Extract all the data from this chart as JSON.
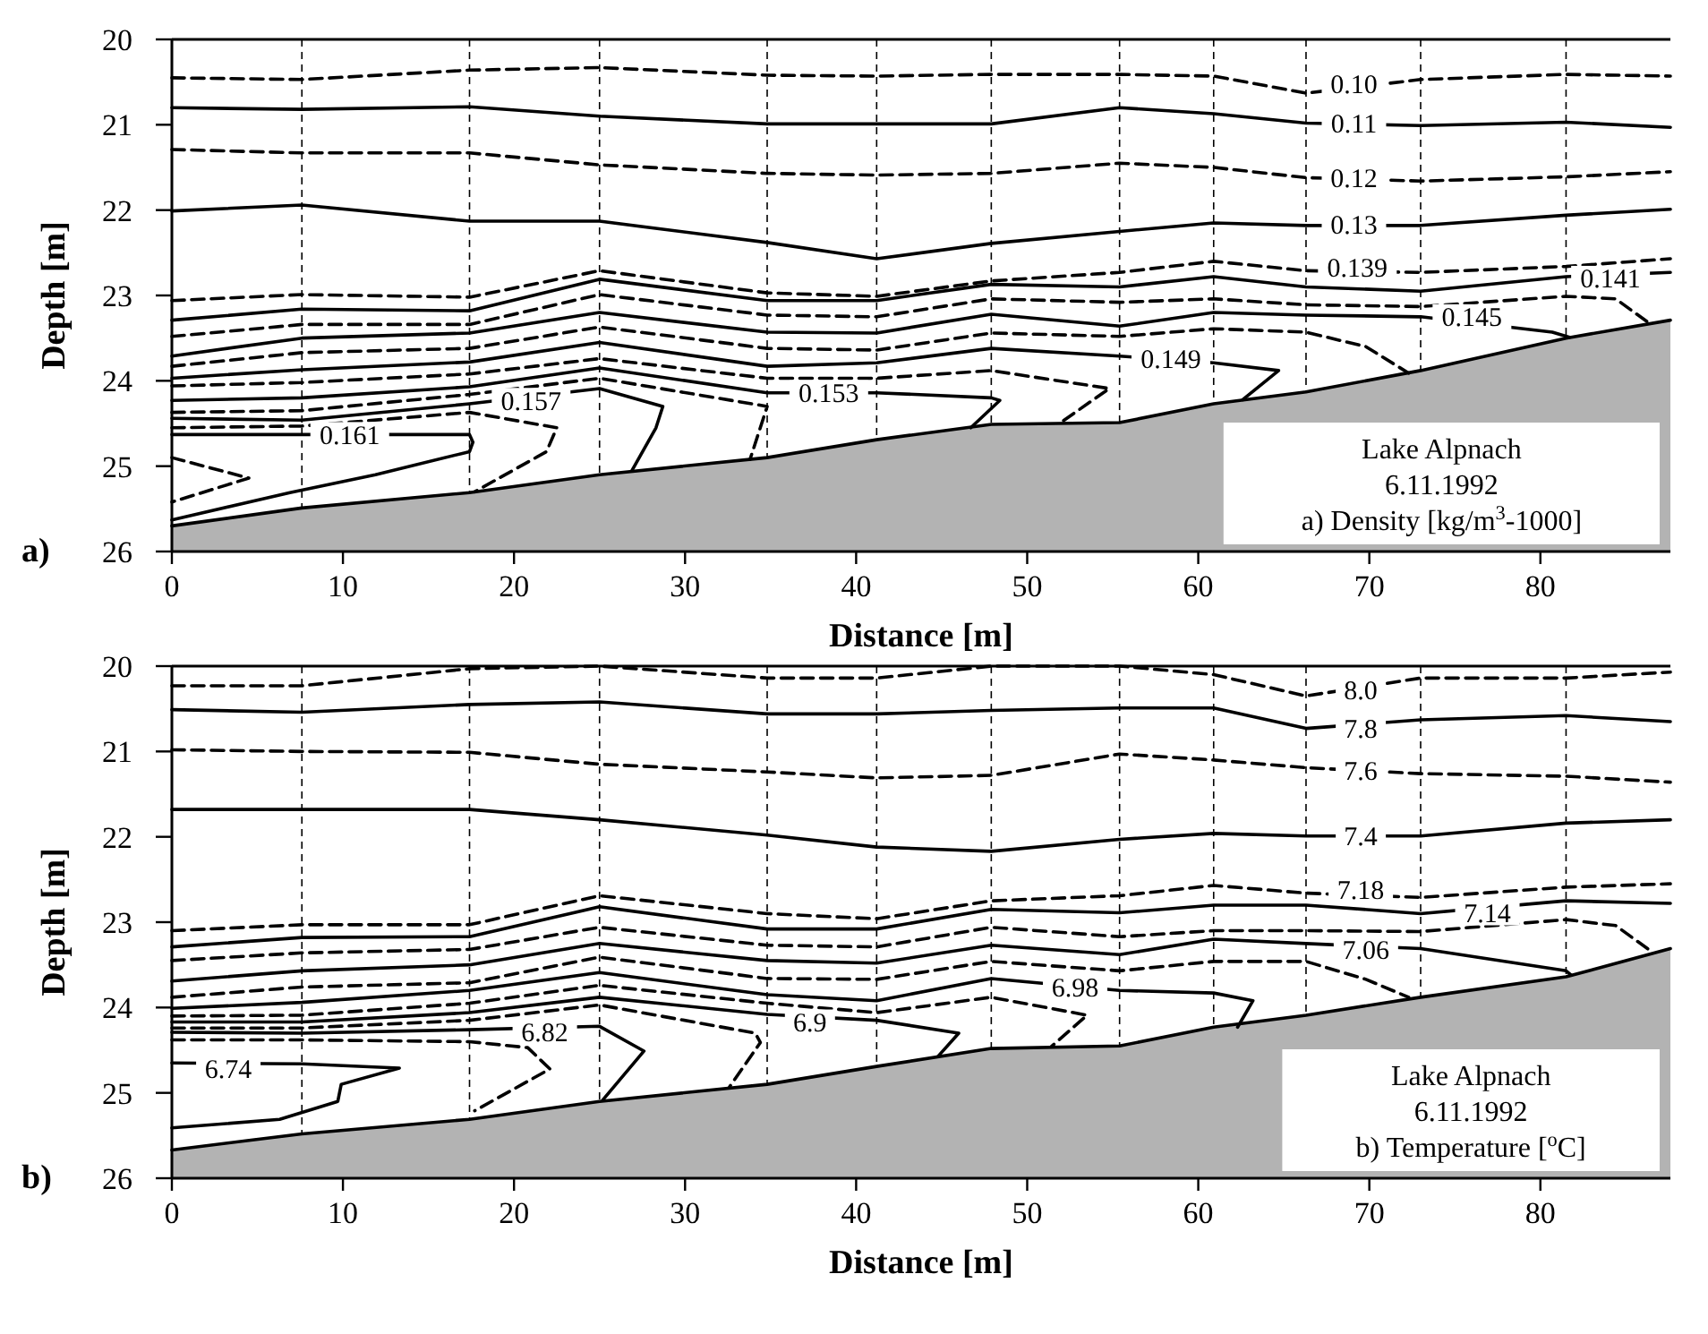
{
  "chart_data": [
    {
      "type": "line",
      "title": "a)",
      "xlabel": "Distance [m]",
      "ylabel": "Depth [m]",
      "xlim": [
        0,
        87.6
      ],
      "xticks": [
        0,
        10,
        20,
        30,
        40,
        50,
        60,
        70,
        80
      ],
      "ylim": [
        26,
        20
      ],
      "yticks": [
        20,
        21,
        22,
        23,
        24,
        25,
        26
      ],
      "ref_lines": [
        {
          "axis": "x",
          "value": 7.6,
          "line_style": "dashed",
          "color": "#000000"
        },
        {
          "axis": "x",
          "value": 17.4,
          "line_style": "dashed",
          "color": "#000000"
        },
        {
          "axis": "x",
          "value": 25,
          "line_style": "dashed",
          "color": "#000000"
        },
        {
          "axis": "x",
          "value": 34.8,
          "line_style": "dashed",
          "color": "#000000"
        },
        {
          "axis": "x",
          "value": 41.2,
          "line_style": "dashed",
          "color": "#000000"
        },
        {
          "axis": "x",
          "value": 47.9,
          "line_style": "dashed",
          "color": "#000000"
        },
        {
          "axis": "x",
          "value": 55.4,
          "line_style": "dashed",
          "color": "#000000"
        },
        {
          "axis": "x",
          "value": 60.9,
          "line_style": "dashed",
          "color": "#000000"
        },
        {
          "axis": "x",
          "value": 66.3,
          "line_style": "dashed",
          "color": "#000000"
        },
        {
          "axis": "x",
          "value": 73,
          "line_style": "dashed",
          "color": "#000000"
        },
        {
          "axis": "x",
          "value": 81.5,
          "line_style": "dashed",
          "color": "#000000"
        }
      ],
      "series": [
        {
          "color": "#000000",
          "line_style": "solid",
          "x": [
            0,
            7.6,
            17.4,
            25,
            34.8,
            41.2,
            47.9,
            55.4,
            60.9,
            66.3,
            73,
            81.5,
            87.6
          ],
          "values": [
            25.7,
            25.49,
            25.31,
            25.1,
            24.9,
            24.69,
            24.51,
            24.49,
            24.27,
            24.13,
            23.88,
            23.5,
            23.29
          ],
          "lower": [
            25.7,
            25.49,
            25.31,
            25.1,
            24.9,
            24.69,
            24.51,
            24.49,
            24.27,
            24.13,
            23.88,
            23.5,
            23.29
          ],
          "upper": [
            26,
            26,
            26,
            26,
            26,
            26,
            26,
            26,
            26,
            26,
            26,
            26,
            26
          ]
        },
        {
          "color": "#000000",
          "line_style": "dashed",
          "x": [
            0,
            7.6,
            17.4,
            25,
            34.8,
            41.2,
            47.9,
            55.4,
            60.9,
            66.3,
            73,
            81.5,
            87.6
          ],
          "values": [
            20.45,
            20.47,
            20.36,
            20.33,
            20.42,
            20.43,
            20.41,
            20.41,
            20.43,
            20.63,
            20.47,
            20.41,
            20.43
          ]
        },
        {
          "color": "#000000",
          "line_style": "solid",
          "x": [
            0,
            7.6,
            17.4,
            25,
            34.8,
            41.2,
            47.9,
            55.4,
            60.9,
            66.3,
            73,
            81.5,
            87.6
          ],
          "values": [
            20.8,
            20.82,
            20.79,
            20.9,
            20.99,
            20.99,
            20.99,
            20.8,
            20.87,
            20.98,
            21.01,
            20.97,
            21.03
          ]
        },
        {
          "color": "#000000",
          "line_style": "dashed",
          "x": [
            0,
            7.6,
            17.4,
            25,
            34.8,
            41.2,
            47.9,
            55.4,
            60.9,
            66.3,
            73,
            81.5,
            87.6
          ],
          "values": [
            21.29,
            21.33,
            21.33,
            21.47,
            21.57,
            21.59,
            21.57,
            21.45,
            21.5,
            21.62,
            21.66,
            21.61,
            21.55
          ]
        },
        {
          "color": "#000000",
          "line_style": "solid",
          "x": [
            0,
            7.6,
            17.4,
            25,
            34.8,
            41.2,
            47.9,
            55.4,
            60.9,
            66.3,
            73,
            81.5,
            87.6
          ],
          "values": [
            22.01,
            21.94,
            22.13,
            22.13,
            22.38,
            22.57,
            22.39,
            22.25,
            22.15,
            22.18,
            22.18,
            22.06,
            21.99
          ]
        },
        {
          "color": "#000000",
          "line_style": "dashed",
          "x": [
            0,
            7.6,
            17.4,
            25,
            34.8,
            41.2,
            47.9,
            55.4,
            60.9,
            66.3,
            73,
            81.5,
            87.6
          ],
          "values": [
            23.06,
            22.99,
            23.02,
            22.71,
            22.97,
            23.01,
            22.83,
            22.73,
            22.6,
            22.71,
            22.73,
            22.66,
            22.57
          ]
        },
        {
          "color": "#000000",
          "line_style": "solid",
          "x": [
            0,
            7.6,
            17.4,
            25,
            34.8,
            41.2,
            47.9,
            55.4,
            60.9,
            66.3,
            73,
            81.5,
            87.6
          ],
          "values": [
            23.29,
            23.16,
            23.18,
            22.81,
            23.06,
            23.06,
            22.87,
            22.9,
            22.78,
            22.9,
            22.95,
            22.78,
            22.73
          ]
        },
        {
          "color": "#000000",
          "line_style": "dashed",
          "x": [
            0,
            7.6,
            17.4,
            25,
            34.8,
            41.2,
            47.9,
            55.4,
            60.9,
            66.3,
            73,
            81.5,
            84.4,
            86.4
          ],
          "values": [
            23.48,
            23.34,
            23.34,
            22.99,
            23.23,
            23.25,
            23.04,
            23.08,
            23.04,
            23.11,
            23.13,
            23.01,
            23.04,
            23.33
          ]
        },
        {
          "color": "#000000",
          "line_style": "solid",
          "x": [
            0,
            7.6,
            17.4,
            25,
            34.8,
            41.2,
            47.9,
            55.4,
            60.9,
            66.3,
            73,
            80.7,
            81.7
          ],
          "values": [
            23.71,
            23.5,
            23.44,
            23.2,
            23.43,
            23.44,
            23.22,
            23.36,
            23.2,
            23.23,
            23.25,
            23.43,
            23.49
          ]
        },
        {
          "color": "#000000",
          "line_style": "dashed",
          "x": [
            0,
            7.6,
            17.4,
            25,
            34.8,
            41.2,
            47.9,
            55.4,
            60.9,
            66.3,
            69.8,
            72.3
          ],
          "values": [
            23.83,
            23.67,
            23.62,
            23.37,
            23.62,
            23.64,
            23.44,
            23.48,
            23.39,
            23.43,
            23.6,
            23.91
          ]
        },
        {
          "color": "#000000",
          "line_style": "solid",
          "x": [
            0,
            7.6,
            17.4,
            25,
            34.8,
            41.2,
            47.9,
            55.4,
            60.9,
            64.7,
            62.6
          ],
          "values": [
            23.97,
            23.87,
            23.78,
            23.55,
            23.83,
            23.79,
            23.62,
            23.71,
            23.79,
            23.88,
            24.22
          ]
        },
        {
          "color": "#000000",
          "line_style": "dashed",
          "x": [
            0,
            7.6,
            17.4,
            25,
            34.8,
            41.2,
            47.9,
            54.8,
            52.1
          ],
          "values": [
            24.06,
            24.02,
            23.92,
            23.74,
            23.97,
            23.97,
            23.88,
            24.09,
            24.47
          ]
        },
        {
          "color": "#000000",
          "line_style": "solid",
          "x": [
            0,
            7.6,
            17.4,
            25,
            34.8,
            41.2,
            47.9,
            48.4,
            46.7
          ],
          "values": [
            24.23,
            24.2,
            24.07,
            23.85,
            24.14,
            24.14,
            24.2,
            24.23,
            24.55
          ]
        },
        {
          "color": "#000000",
          "line_style": "dashed",
          "x": [
            0,
            7.6,
            17.4,
            25,
            34.8,
            33.8
          ],
          "values": [
            24.37,
            24.35,
            24.16,
            23.97,
            24.3,
            24.92
          ]
        },
        {
          "color": "#000000",
          "line_style": "solid",
          "x": [
            0,
            7.6,
            17.4,
            25,
            28.7,
            28.3,
            26.9
          ],
          "values": [
            24.44,
            24.46,
            24.27,
            24.09,
            24.3,
            24.55,
            25.05
          ]
        },
        {
          "color": "#000000",
          "line_style": "dashed",
          "x": [
            0,
            7.6,
            17.4,
            22.5,
            21.9,
            17.7
          ],
          "values": [
            24.55,
            24.53,
            24.37,
            24.55,
            24.83,
            25.3
          ]
        },
        {
          "color": "#000000",
          "line_style": "solid",
          "x": [
            0,
            7.6,
            17.4,
            17.6,
            17.4,
            11.9,
            6.9,
            0
          ],
          "values": [
            24.63,
            24.63,
            24.63,
            24.72,
            24.83,
            25.1,
            25.31,
            25.63
          ]
        },
        {
          "color": "#000000",
          "line_style": "dashed",
          "x": [
            0,
            4.5,
            0
          ],
          "values": [
            24.9,
            25.14,
            25.42
          ]
        }
      ],
      "annotations": [
        {
          "text": "0.10",
          "x": 69.1,
          "y": 20.52
        },
        {
          "text": "0.11",
          "x": 69.1,
          "y": 20.98
        },
        {
          "text": "0.12",
          "x": 69.1,
          "y": 21.62
        },
        {
          "text": "0.13",
          "x": 69.1,
          "y": 22.17
        },
        {
          "text": "0.139",
          "x": 69.3,
          "y": 22.67
        },
        {
          "text": "0.141",
          "x": 84.1,
          "y": 22.8
        },
        {
          "text": "0.145",
          "x": 76.0,
          "y": 23.25
        },
        {
          "text": "0.149",
          "x": 58.4,
          "y": 23.74
        },
        {
          "text": "0.153",
          "x": 38.4,
          "y": 24.14
        },
        {
          "text": "0.157",
          "x": 21.0,
          "y": 24.23
        },
        {
          "text": "0.161",
          "x": 10.4,
          "y": 24.63
        },
        "Lake Alpnach",
        "6.11.1992",
        "a) Density [kg/m$^{3}$-1000]"
      ]
    },
    {
      "type": "line",
      "title": "b)",
      "xlabel": "Distance [m]",
      "ylabel": "Depth [m]",
      "xlim": [
        0,
        87.6
      ],
      "xticks": [
        0,
        10,
        20,
        30,
        40,
        50,
        60,
        70,
        80
      ],
      "ylim": [
        26,
        20
      ],
      "yticks": [
        20,
        21,
        22,
        23,
        24,
        25,
        26
      ],
      "ref_lines": [
        {
          "axis": "x",
          "value": 7.6,
          "line_style": "dashed",
          "color": "#000000"
        },
        {
          "axis": "x",
          "value": 17.4,
          "line_style": "dashed",
          "color": "#000000"
        },
        {
          "axis": "x",
          "value": 25,
          "line_style": "dashed",
          "color": "#000000"
        },
        {
          "axis": "x",
          "value": 34.8,
          "line_style": "dashed",
          "color": "#000000"
        },
        {
          "axis": "x",
          "value": 41.2,
          "line_style": "dashed",
          "color": "#000000"
        },
        {
          "axis": "x",
          "value": 47.9,
          "line_style": "dashed",
          "color": "#000000"
        },
        {
          "axis": "x",
          "value": 55.4,
          "line_style": "dashed",
          "color": "#000000"
        },
        {
          "axis": "x",
          "value": 60.9,
          "line_style": "dashed",
          "color": "#000000"
        },
        {
          "axis": "x",
          "value": 66.3,
          "line_style": "dashed",
          "color": "#000000"
        },
        {
          "axis": "x",
          "value": 73,
          "line_style": "dashed",
          "color": "#000000"
        },
        {
          "axis": "x",
          "value": 81.5,
          "line_style": "dashed",
          "color": "#000000"
        }
      ],
      "series": [
        {
          "color": "#000000",
          "line_style": "solid",
          "x": [
            0,
            7.6,
            17.4,
            25,
            34.8,
            41.2,
            47.9,
            55.4,
            60.9,
            66.3,
            73,
            81.5,
            87.6
          ],
          "values": [
            25.67,
            25.48,
            25.31,
            25.1,
            24.9,
            24.69,
            24.48,
            24.45,
            24.23,
            24.09,
            23.88,
            23.64,
            23.31
          ],
          "lower": [
            25.67,
            25.48,
            25.31,
            25.1,
            24.9,
            24.69,
            24.48,
            24.45,
            24.23,
            24.09,
            23.88,
            23.64,
            23.31
          ],
          "upper": [
            26,
            26,
            26,
            26,
            26,
            26,
            26,
            26,
            26,
            26,
            26,
            26,
            26
          ]
        },
        {
          "color": "#000000",
          "line_style": "dashed",
          "x": [
            0,
            7.6,
            17.4,
            25,
            34.8,
            41.2,
            47.9,
            55.4,
            60.9,
            66.3,
            73,
            81.5,
            87.6
          ],
          "values": [
            20.23,
            20.23,
            20.03,
            20.0,
            20.14,
            20.14,
            20.0,
            20.0,
            20.1,
            20.35,
            20.14,
            20.14,
            20.07
          ]
        },
        {
          "color": "#000000",
          "line_style": "solid",
          "x": [
            0,
            7.6,
            17.4,
            25,
            34.8,
            41.2,
            47.9,
            55.4,
            60.9,
            66.3,
            73,
            81.5,
            87.6
          ],
          "values": [
            20.51,
            20.54,
            20.45,
            20.42,
            20.56,
            20.56,
            20.52,
            20.49,
            20.49,
            20.73,
            20.63,
            20.58,
            20.65
          ]
        },
        {
          "color": "#000000",
          "line_style": "dashed",
          "x": [
            0,
            7.6,
            17.4,
            25,
            34.8,
            41.2,
            47.9,
            55.4,
            60.9,
            66.3,
            73,
            81.5,
            87.6
          ],
          "values": [
            20.98,
            21.0,
            21.01,
            21.15,
            21.24,
            21.31,
            21.28,
            21.03,
            21.1,
            21.19,
            21.26,
            21.29,
            21.36
          ]
        },
        {
          "color": "#000000",
          "line_style": "solid",
          "x": [
            0,
            7.6,
            17.4,
            25,
            34.8,
            41.2,
            47.9,
            55.4,
            60.9,
            66.3,
            73,
            81.5,
            87.6
          ],
          "values": [
            21.68,
            21.68,
            21.68,
            21.8,
            21.98,
            22.12,
            22.17,
            22.03,
            21.96,
            21.99,
            21.99,
            21.84,
            21.8
          ]
        },
        {
          "color": "#000000",
          "line_style": "dashed",
          "x": [
            0,
            7.6,
            17.4,
            25,
            34.8,
            41.2,
            47.9,
            55.4,
            60.9,
            66.3,
            73,
            81.5,
            87.6
          ],
          "values": [
            23.1,
            23.03,
            23.03,
            22.69,
            22.9,
            22.96,
            22.75,
            22.69,
            22.57,
            22.66,
            22.71,
            22.59,
            22.55
          ]
        },
        {
          "color": "#000000",
          "line_style": "solid",
          "x": [
            0,
            7.6,
            17.4,
            25,
            34.8,
            41.2,
            47.9,
            55.4,
            60.9,
            66.3,
            73,
            81.5,
            87.6
          ],
          "values": [
            23.29,
            23.18,
            23.17,
            22.82,
            23.08,
            23.08,
            22.85,
            22.89,
            22.8,
            22.8,
            22.9,
            22.75,
            22.78
          ]
        },
        {
          "color": "#000000",
          "line_style": "dashed",
          "x": [
            0,
            7.6,
            17.4,
            25,
            34.8,
            41.2,
            47.9,
            55.4,
            60.9,
            66.3,
            73,
            81.5,
            84.4,
            86.4
          ],
          "values": [
            23.45,
            23.36,
            23.32,
            23.06,
            23.27,
            23.29,
            23.06,
            23.17,
            23.1,
            23.1,
            23.11,
            22.97,
            23.04,
            23.33
          ]
        },
        {
          "color": "#000000",
          "line_style": "solid",
          "x": [
            0,
            7.6,
            17.4,
            25,
            34.8,
            41.2,
            47.9,
            55.4,
            60.9,
            66.3,
            73,
            81.5,
            81.8
          ],
          "values": [
            23.69,
            23.57,
            23.5,
            23.25,
            23.45,
            23.48,
            23.27,
            23.38,
            23.2,
            23.25,
            23.31,
            23.57,
            23.62
          ]
        },
        {
          "color": "#000000",
          "line_style": "dashed",
          "x": [
            0,
            7.6,
            17.4,
            25,
            34.8,
            41.2,
            47.9,
            55.4,
            60.9,
            66.3,
            69.8,
            72.3
          ],
          "values": [
            23.88,
            23.76,
            23.71,
            23.41,
            23.66,
            23.67,
            23.46,
            23.57,
            23.46,
            23.46,
            23.67,
            23.88
          ]
        },
        {
          "color": "#000000",
          "line_style": "solid",
          "x": [
            0,
            7.6,
            17.4,
            25,
            34.8,
            41.2,
            47.9,
            55.4,
            60.9,
            63.2,
            62.3
          ],
          "values": [
            24.01,
            23.94,
            23.8,
            23.59,
            23.85,
            23.92,
            23.66,
            23.8,
            23.83,
            23.92,
            24.23
          ]
        },
        {
          "color": "#000000",
          "line_style": "dashed",
          "x": [
            0,
            7.6,
            17.4,
            25,
            34.8,
            41.2,
            47.9,
            53.5,
            51.4
          ],
          "values": [
            24.1,
            24.09,
            23.95,
            23.74,
            23.95,
            24.06,
            23.88,
            24.09,
            24.46
          ]
        },
        {
          "color": "#000000",
          "line_style": "solid",
          "x": [
            0,
            7.6,
            17.4,
            25,
            34.8,
            41.2,
            46.0,
            44.8
          ],
          "values": [
            24.17,
            24.17,
            24.06,
            23.88,
            24.08,
            24.15,
            24.3,
            24.57
          ]
        },
        {
          "color": "#000000",
          "line_style": "dashed",
          "x": [
            0,
            7.6,
            17.4,
            25,
            34.1,
            34.4,
            32.6
          ],
          "values": [
            24.24,
            24.24,
            24.15,
            23.97,
            24.3,
            24.41,
            24.93
          ]
        },
        {
          "color": "#000000",
          "line_style": "solid",
          "x": [
            0,
            7.6,
            17.4,
            25,
            27.6,
            25.2
          ],
          "values": [
            24.29,
            24.3,
            24.26,
            24.22,
            24.51,
            25.08
          ]
        },
        {
          "color": "#000000",
          "line_style": "dashed",
          "x": [
            0,
            7.6,
            17.4,
            20.8,
            22.1,
            17.7
          ],
          "values": [
            24.38,
            24.38,
            24.4,
            24.47,
            24.72,
            25.21
          ]
        },
        {
          "color": "#000000",
          "line_style": "solid",
          "x": [
            0,
            7.6,
            13.3,
            9.9,
            9.7,
            6.3,
            0
          ],
          "values": [
            24.65,
            24.66,
            24.71,
            24.9,
            25.1,
            25.31,
            25.41
          ]
        }
      ],
      "annotations": [
        {
          "text": "8.0",
          "x": 69.5,
          "y": 20.28
        },
        {
          "text": "7.8",
          "x": 69.5,
          "y": 20.73
        },
        {
          "text": "7.6",
          "x": 69.5,
          "y": 21.22
        },
        {
          "text": "7.4",
          "x": 69.5,
          "y": 21.99
        },
        {
          "text": "7.18",
          "x": 69.5,
          "y": 22.62
        },
        {
          "text": "7.14",
          "x": 76.9,
          "y": 22.89
        },
        {
          "text": "7.06",
          "x": 69.8,
          "y": 23.32
        },
        {
          "text": "6.98",
          "x": 52.8,
          "y": 23.76
        },
        {
          "text": "6.9",
          "x": 37.3,
          "y": 24.17
        },
        {
          "text": "6.82",
          "x": 21.8,
          "y": 24.28
        },
        {
          "text": "6.74",
          "x": 3.3,
          "y": 24.72
        },
        "Lake Alpnach",
        "6.11.1992",
        "b) Temperature [$^{o}$C]"
      ]
    }
  ]
}
